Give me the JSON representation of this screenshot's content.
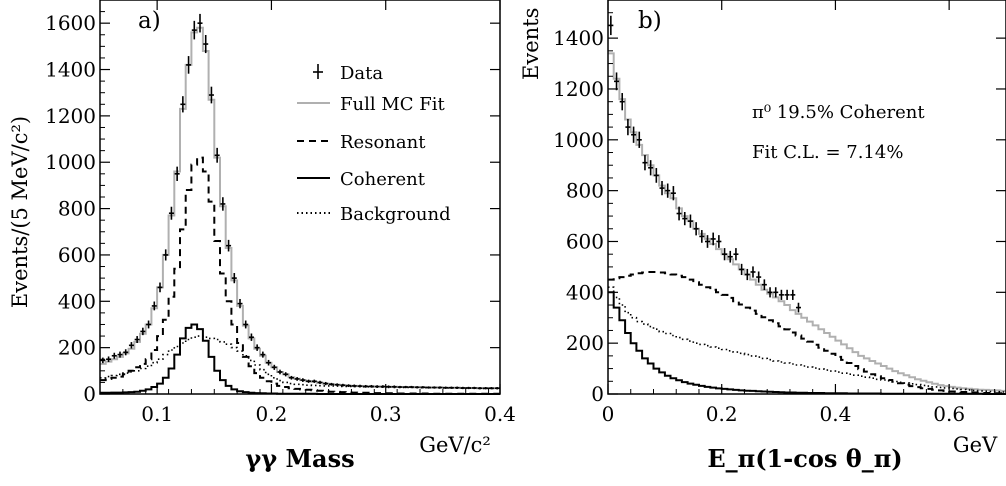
{
  "figure": {
    "panels": [
      "a)",
      "b)"
    ]
  },
  "chart_data": [
    {
      "type": "line",
      "panel_label": "a)",
      "title": "",
      "xlabel": "γγ Mass",
      "xunit": "GeV/c²",
      "ylabel": "Events/(5 MeV/c²)",
      "xlim": [
        0.05,
        0.4
      ],
      "ylim": [
        0,
        1700
      ],
      "xticks": [
        0.1,
        0.2,
        0.3,
        0.4
      ],
      "xtick_labels": [
        "0.1",
        "0.2",
        "0.3",
        "0.4"
      ],
      "yticks": [
        0,
        200,
        400,
        600,
        800,
        1000,
        1200,
        1400,
        1600
      ],
      "ytick_labels": [
        "0",
        "200",
        "400",
        "600",
        "800",
        "1000",
        "1200",
        "1400",
        "1600"
      ],
      "legend": {
        "placement": "top-right",
        "entries": [
          {
            "label": "Data",
            "style": "data"
          },
          {
            "label": "Full MC Fit",
            "style": "gray"
          },
          {
            "label": "Resonant",
            "style": "dashed"
          },
          {
            "label": "Coherent",
            "style": "solid"
          },
          {
            "label": "Background",
            "style": "dotted"
          }
        ]
      },
      "x": [
        0.0525,
        0.0575,
        0.0625,
        0.0675,
        0.0725,
        0.0775,
        0.0825,
        0.0875,
        0.0925,
        0.0975,
        0.1025,
        0.1075,
        0.1125,
        0.1175,
        0.1225,
        0.1275,
        0.1325,
        0.1375,
        0.1425,
        0.1475,
        0.1525,
        0.1575,
        0.1625,
        0.1675,
        0.1725,
        0.1775,
        0.1825,
        0.1875,
        0.1925,
        0.1975,
        0.2025,
        0.2075,
        0.2125,
        0.2175,
        0.2225,
        0.2275,
        0.2325,
        0.2375,
        0.2425,
        0.2475,
        0.2525,
        0.2575,
        0.2625,
        0.2675,
        0.2725,
        0.2775,
        0.2825,
        0.2875,
        0.2925,
        0.2975,
        0.3025,
        0.3075,
        0.3125,
        0.3175,
        0.3225,
        0.3275,
        0.3325,
        0.3375,
        0.3425,
        0.3475,
        0.3525,
        0.3575,
        0.3625,
        0.3675,
        0.3725,
        0.3775,
        0.3825,
        0.3875,
        0.3925,
        0.3975
      ],
      "series": [
        {
          "name": "Data",
          "style": "data",
          "values": [
            145,
            150,
            165,
            170,
            180,
            210,
            235,
            270,
            300,
            380,
            460,
            600,
            780,
            950,
            1250,
            1420,
            1570,
            1600,
            1510,
            1290,
            1030,
            820,
            640,
            500,
            390,
            300,
            245,
            200,
            170,
            135,
            115,
            95,
            85,
            70,
            65,
            60,
            55,
            55,
            50,
            45,
            42,
            40,
            38,
            36,
            35,
            34,
            33,
            33,
            32,
            32,
            31,
            31,
            30,
            30,
            30,
            29,
            29,
            28,
            28,
            28,
            27,
            27,
            27,
            26,
            26,
            26,
            25,
            25,
            25,
            25
          ],
          "errors": [
            12,
            12,
            13,
            13,
            13,
            14,
            15,
            16,
            17,
            19,
            21,
            24,
            28,
            31,
            35,
            38,
            40,
            40,
            39,
            36,
            32,
            29,
            25,
            22,
            20,
            17,
            16,
            14,
            13,
            12,
            11,
            10,
            9,
            8,
            8,
            8,
            7,
            7,
            7,
            7,
            6,
            6,
            6,
            6,
            6,
            6,
            6,
            6,
            6,
            6,
            6,
            6,
            5,
            5,
            5,
            5,
            5,
            5,
            5,
            5,
            5,
            5,
            5,
            5,
            5,
            5,
            5,
            5,
            5,
            5
          ]
        },
        {
          "name": "Full MC Fit",
          "style": "gray",
          "values": [
            130,
            140,
            150,
            160,
            175,
            195,
            225,
            260,
            300,
            370,
            460,
            600,
            770,
            960,
            1230,
            1420,
            1560,
            1580,
            1480,
            1270,
            1020,
            810,
            630,
            490,
            380,
            295,
            240,
            195,
            165,
            135,
            115,
            95,
            85,
            72,
            66,
            60,
            55,
            52,
            48,
            45,
            42,
            40,
            38,
            36,
            35,
            34,
            33,
            33,
            32,
            32,
            31,
            31,
            30,
            30,
            30,
            29,
            29,
            28,
            28,
            28,
            27,
            27,
            27,
            26,
            26,
            26,
            25,
            25,
            25,
            25
          ]
        },
        {
          "name": "Resonant",
          "style": "dashed",
          "values": [
            60,
            65,
            70,
            75,
            85,
            100,
            115,
            130,
            150,
            190,
            250,
            320,
            420,
            540,
            710,
            880,
            990,
            1020,
            960,
            830,
            660,
            520,
            400,
            300,
            220,
            160,
            120,
            90,
            70,
            55,
            45,
            35,
            30,
            25,
            22,
            20,
            18,
            16,
            14,
            12,
            10,
            9,
            8,
            7,
            6,
            5,
            5,
            4,
            4,
            3,
            3,
            3,
            2,
            2,
            2,
            2,
            2,
            2,
            1,
            1,
            1,
            1,
            1,
            1,
            1,
            1,
            1,
            1,
            1,
            1
          ]
        },
        {
          "name": "Coherent",
          "style": "solid",
          "values": [
            5,
            5,
            6,
            6,
            7,
            8,
            10,
            14,
            20,
            30,
            45,
            70,
            110,
            170,
            240,
            285,
            300,
            280,
            230,
            160,
            100,
            60,
            35,
            20,
            12,
            8,
            5,
            4,
            3,
            2,
            2,
            1,
            1,
            1,
            1,
            1,
            1,
            1,
            0,
            0,
            0,
            0,
            0,
            0,
            0,
            0,
            0,
            0,
            0,
            0,
            0,
            0,
            0,
            0,
            0,
            0,
            0,
            0,
            0,
            0,
            0,
            0,
            0,
            0,
            0,
            0,
            0,
            0,
            0,
            0
          ]
        },
        {
          "name": "Background",
          "style": "dotted",
          "values": [
            70,
            75,
            80,
            85,
            90,
            95,
            100,
            110,
            120,
            135,
            150,
            170,
            190,
            205,
            220,
            235,
            245,
            250,
            245,
            240,
            235,
            225,
            215,
            200,
            185,
            165,
            145,
            125,
            105,
            85,
            70,
            58,
            50,
            45,
            42,
            40,
            38,
            37,
            36,
            35,
            35,
            34,
            33,
            33,
            32,
            32,
            31,
            31,
            30,
            30,
            30,
            29,
            29,
            28,
            28,
            28,
            27,
            27,
            27,
            26,
            26,
            26,
            25,
            25,
            25,
            25,
            24,
            24,
            24,
            24
          ]
        }
      ]
    },
    {
      "type": "line",
      "panel_label": "b)",
      "title": "",
      "xlabel": "E_π(1-cos θ_π)",
      "xunit": "GeV",
      "ylabel": "Events",
      "xlim": [
        0,
        0.7
      ],
      "ylim": [
        0,
        1550
      ],
      "xticks": [
        0,
        0.2,
        0.4,
        0.6
      ],
      "xtick_labels": [
        "0",
        "0.2",
        "0.4",
        "0.6"
      ],
      "yticks": [
        0,
        200,
        400,
        600,
        800,
        1000,
        1200,
        1400
      ],
      "ytick_labels": [
        "0",
        "200",
        "400",
        "600",
        "800",
        "1000",
        "1200",
        "1400"
      ],
      "annotations": [
        "π⁰ 19.5% Coherent",
        "Fit C.L. = 7.14%"
      ],
      "x": [
        0.005,
        0.015,
        0.025,
        0.035,
        0.045,
        0.055,
        0.065,
        0.075,
        0.085,
        0.095,
        0.105,
        0.115,
        0.125,
        0.135,
        0.145,
        0.155,
        0.165,
        0.175,
        0.185,
        0.195,
        0.205,
        0.215,
        0.225,
        0.235,
        0.245,
        0.255,
        0.265,
        0.275,
        0.285,
        0.295,
        0.305,
        0.315,
        0.325,
        0.335,
        0.345,
        0.355,
        0.365,
        0.375,
        0.385,
        0.395,
        0.405,
        0.415,
        0.425,
        0.435,
        0.445,
        0.455,
        0.465,
        0.475,
        0.485,
        0.495,
        0.505,
        0.515,
        0.525,
        0.535,
        0.545,
        0.555,
        0.565,
        0.575,
        0.585,
        0.595,
        0.605,
        0.615,
        0.625,
        0.635,
        0.645,
        0.655,
        0.665,
        0.675,
        0.685,
        0.695
      ],
      "series": [
        {
          "name": "Data",
          "style": "data",
          "points_until": 0.335,
          "values": [
            1450,
            1230,
            1150,
            1050,
            1020,
            1000,
            910,
            890,
            860,
            810,
            800,
            790,
            710,
            690,
            680,
            650,
            620,
            600,
            610,
            600,
            550,
            540,
            550,
            490,
            470,
            480,
            460,
            430,
            400,
            400,
            390,
            390,
            390,
            340,
            310,
            300,
            290,
            280,
            260,
            240,
            220,
            190,
            170,
            160,
            150,
            140,
            130,
            120,
            110,
            100,
            90,
            80,
            70,
            60,
            55,
            50,
            45,
            40,
            35,
            30,
            28,
            26,
            24,
            22,
            20,
            18,
            16,
            15,
            14,
            12
          ],
          "errors": [
            38,
            35,
            34,
            32,
            32,
            32,
            30,
            30,
            29,
            28,
            28,
            28,
            27,
            26,
            26,
            26,
            25,
            25,
            25,
            25,
            24,
            23,
            24,
            22,
            22,
            22,
            22,
            21,
            20,
            20,
            20,
            20,
            20,
            19,
            18,
            17,
            17,
            17,
            16,
            16,
            15,
            14,
            13,
            13,
            12,
            12,
            11,
            11,
            11,
            10,
            10,
            9,
            9,
            8,
            8,
            7,
            7,
            7,
            6,
            6,
            6,
            5,
            5,
            5,
            5,
            5,
            4,
            4,
            4,
            4
          ]
        },
        {
          "name": "Full MC Fit",
          "style": "gray",
          "values": [
            1340,
            1240,
            1160,
            1080,
            1030,
            980,
            940,
            900,
            860,
            820,
            790,
            770,
            730,
            700,
            680,
            650,
            630,
            610,
            590,
            570,
            550,
            530,
            510,
            490,
            470,
            450,
            430,
            410,
            395,
            380,
            365,
            350,
            330,
            315,
            300,
            285,
            270,
            255,
            240,
            225,
            210,
            195,
            180,
            165,
            150,
            140,
            130,
            120,
            110,
            100,
            90,
            82,
            74,
            66,
            58,
            52,
            46,
            40,
            35,
            31,
            28,
            25,
            23,
            21,
            19,
            17,
            16,
            15,
            14,
            12
          ]
        },
        {
          "name": "Resonant",
          "style": "dashed",
          "values": [
            450,
            455,
            460,
            465,
            470,
            475,
            478,
            480,
            480,
            478,
            475,
            470,
            465,
            460,
            450,
            440,
            430,
            420,
            410,
            400,
            390,
            378,
            365,
            352,
            340,
            328,
            315,
            302,
            290,
            278,
            266,
            254,
            242,
            230,
            218,
            206,
            194,
            182,
            170,
            158,
            146,
            134,
            122,
            110,
            98,
            88,
            78,
            70,
            62,
            55,
            48,
            42,
            36,
            31,
            27,
            23,
            20,
            17,
            14,
            12,
            10,
            9,
            8,
            7,
            6,
            5,
            4,
            4,
            3,
            3
          ]
        },
        {
          "name": "Coherent",
          "style": "solid",
          "values": [
            400,
            340,
            290,
            240,
            200,
            170,
            140,
            120,
            100,
            85,
            72,
            62,
            54,
            47,
            41,
            36,
            32,
            28,
            25,
            22,
            20,
            18,
            16,
            14,
            13,
            12,
            11,
            10,
            9,
            8,
            7,
            6,
            6,
            5,
            5,
            4,
            4,
            4,
            3,
            3,
            3,
            3,
            2,
            2,
            2,
            2,
            2,
            2,
            1,
            1,
            1,
            1,
            1,
            1,
            1,
            1,
            1,
            1,
            1,
            1,
            1,
            1,
            1,
            1,
            1,
            1,
            0,
            0,
            0,
            0
          ]
        },
        {
          "name": "Background",
          "style": "dotted",
          "values": [
            420,
            380,
            350,
            320,
            300,
            285,
            275,
            265,
            255,
            245,
            238,
            230,
            222,
            215,
            208,
            200,
            195,
            190,
            185,
            180,
            175,
            170,
            165,
            160,
            155,
            150,
            145,
            140,
            135,
            130,
            126,
            122,
            118,
            114,
            110,
            106,
            102,
            98,
            94,
            90,
            86,
            82,
            78,
            74,
            70,
            66,
            62,
            58,
            55,
            52,
            49,
            46,
            43,
            40,
            37,
            34,
            31,
            28,
            26,
            24,
            22,
            20,
            18,
            16,
            14,
            12,
            11,
            10,
            9,
            8
          ]
        }
      ]
    }
  ]
}
